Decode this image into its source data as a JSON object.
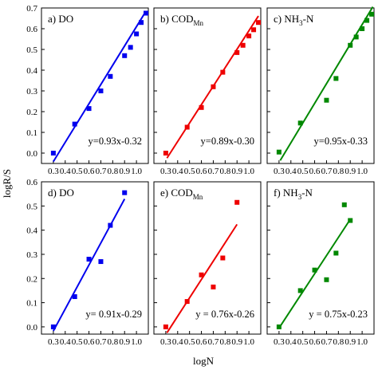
{
  "chart_data": {
    "type": "scatter",
    "xlabel": "logN",
    "ylabel": "logR/S",
    "xlim": [
      0.2,
      1.1
    ],
    "x_ticks": [
      "0.3",
      "0.4",
      "0.5",
      "0.6",
      "0.7",
      "0.8",
      "0.9",
      "1.0"
    ],
    "rows": [
      {
        "ylim": [
          -0.05,
          0.7
        ],
        "y_ticks": [
          "0.0",
          "0.1",
          "0.2",
          "0.3",
          "0.4",
          "0.5",
          "0.6",
          "0.7"
        ],
        "panels": [
          {
            "label": "a) DO",
            "label_main": "a) DO",
            "label_sub": "",
            "equation": "y=0.93x-0.32",
            "color": "#0000ee",
            "fit": [
              0.93,
              -0.32
            ],
            "fit_x": [
              0.3,
              1.08
            ],
            "points": [
              [
                0.3,
                0.0
              ],
              [
                0.48,
                0.14
              ],
              [
                0.6,
                0.215
              ],
              [
                0.7,
                0.3
              ],
              [
                0.78,
                0.37
              ],
              [
                0.9,
                0.47
              ],
              [
                0.95,
                0.51
              ],
              [
                1.0,
                0.575
              ],
              [
                1.04,
                0.63
              ],
              [
                1.08,
                0.675
              ]
            ]
          },
          {
            "label": "b) COD",
            "label_main": "b) COD",
            "label_sub": "Mn",
            "equation": "y=0.89x-0.30",
            "color": "#ee0000",
            "fit": [
              0.89,
              -0.3
            ],
            "fit_x": [
              0.31,
              1.08
            ],
            "points": [
              [
                0.3,
                0.0
              ],
              [
                0.48,
                0.125
              ],
              [
                0.6,
                0.22
              ],
              [
                0.7,
                0.32
              ],
              [
                0.78,
                0.39
              ],
              [
                0.9,
                0.485
              ],
              [
                0.95,
                0.52
              ],
              [
                1.0,
                0.565
              ],
              [
                1.04,
                0.595
              ],
              [
                1.08,
                0.63
              ]
            ]
          },
          {
            "label": "c) NH3-N",
            "label_main": "c) NH",
            "label_sub": "3",
            "label_tail": "-N",
            "equation": "y=0.95x-0.33",
            "color": "#008800",
            "fit": [
              0.95,
              -0.33
            ],
            "fit_x": [
              0.31,
              1.09
            ],
            "points": [
              [
                0.3,
                0.005
              ],
              [
                0.48,
                0.145
              ],
              [
                0.7,
                0.255
              ],
              [
                0.78,
                0.36
              ],
              [
                0.9,
                0.52
              ],
              [
                0.95,
                0.56
              ],
              [
                1.0,
                0.6
              ],
              [
                1.04,
                0.64
              ],
              [
                1.08,
                0.67
              ]
            ]
          }
        ]
      },
      {
        "ylim": [
          -0.03,
          0.6
        ],
        "y_ticks": [
          "0.0",
          "0.1",
          "0.2",
          "0.3",
          "0.4",
          "0.5",
          "0.6"
        ],
        "panels": [
          {
            "label": "d) DO",
            "label_main": "d) DO",
            "label_sub": "",
            "equation": "y= 0.91x-0.29",
            "color": "#0000ee",
            "fit": [
              0.91,
              -0.29
            ],
            "fit_x": [
              0.3,
              0.9
            ],
            "points": [
              [
                0.3,
                0.0
              ],
              [
                0.48,
                0.125
              ],
              [
                0.6,
                0.28
              ],
              [
                0.7,
                0.27
              ],
              [
                0.78,
                0.42
              ],
              [
                0.9,
                0.555
              ]
            ]
          },
          {
            "label": "e) COD",
            "label_main": "e) COD",
            "label_sub": "Mn",
            "equation": "y = 0.76x-0.26",
            "color": "#ee0000",
            "fit": [
              0.76,
              -0.26
            ],
            "fit_x": [
              0.31,
              0.9
            ],
            "points": [
              [
                0.3,
                0.0
              ],
              [
                0.48,
                0.105
              ],
              [
                0.6,
                0.215
              ],
              [
                0.7,
                0.165
              ],
              [
                0.78,
                0.285
              ],
              [
                0.9,
                0.515
              ]
            ]
          },
          {
            "label": "f) NH3-N",
            "label_main": "f) NH",
            "label_sub": "3",
            "label_tail": "-N",
            "equation": "y = 0.75x-0.23",
            "color": "#008800",
            "fit": [
              0.75,
              -0.23
            ],
            "fit_x": [
              0.3,
              0.9
            ],
            "points": [
              [
                0.3,
                0.0
              ],
              [
                0.48,
                0.15
              ],
              [
                0.6,
                0.235
              ],
              [
                0.7,
                0.195
              ],
              [
                0.78,
                0.305
              ],
              [
                0.85,
                0.505
              ],
              [
                0.9,
                0.44
              ]
            ]
          }
        ]
      }
    ]
  }
}
